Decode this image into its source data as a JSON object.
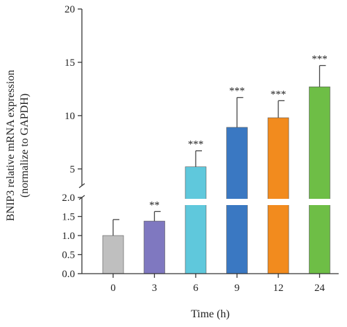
{
  "chart_data": {
    "type": "bar",
    "xlabel": "Time (h)",
    "ylabel_lines": [
      "BNIP3 relative mRNA expression",
      "(normalize to GAPDH)"
    ],
    "categories": [
      "0",
      "3",
      "6",
      "9",
      "12",
      "24"
    ],
    "values": [
      1.0,
      1.38,
      5.2,
      8.9,
      9.8,
      12.7
    ],
    "errors": [
      0.42,
      0.25,
      1.5,
      2.8,
      1.6,
      2.0
    ],
    "significance": [
      "",
      "**",
      "***",
      "***",
      "***",
      "***"
    ],
    "colors": [
      "#bfbfbf",
      "#7f78c0",
      "#5fc8dc",
      "#3a78c2",
      "#f28b1e",
      "#6ebe46"
    ],
    "axis_break": {
      "lower_range": [
        0,
        2.0
      ],
      "upper_range": [
        2.0,
        20
      ]
    },
    "lower_ticks": [
      "0.0",
      "0.5",
      "1.0",
      "1.5",
      "2.0"
    ],
    "upper_ticks": [
      "5",
      "10",
      "15",
      "20"
    ],
    "grid": false,
    "legend": "none"
  }
}
